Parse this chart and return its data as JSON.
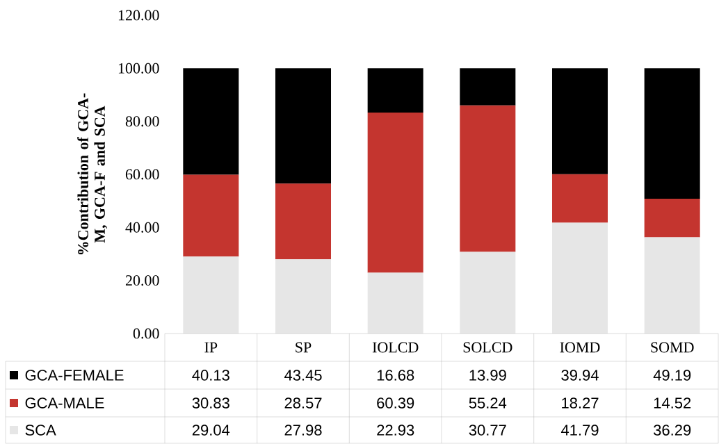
{
  "chart_data": {
    "type": "bar",
    "stacked": true,
    "ylabel": "%Contribution of GCA-M, GCA-F and SCA",
    "categories": [
      "IP",
      "SP",
      "IOLCD",
      "SOLCD",
      "IOMD",
      "SOMD"
    ],
    "series": [
      {
        "name": "SCA",
        "color": "#e6e6e6",
        "values": [
          29.04,
          27.98,
          22.93,
          30.77,
          41.79,
          36.29
        ]
      },
      {
        "name": "GCA-MALE",
        "color": "#c4352f",
        "values": [
          30.83,
          28.57,
          60.39,
          55.24,
          18.27,
          14.52
        ]
      },
      {
        "name": "GCA-FEMALE",
        "color": "#000000",
        "values": [
          40.13,
          43.45,
          16.68,
          13.99,
          39.94,
          49.19
        ]
      }
    ],
    "ylim": [
      0,
      120
    ],
    "yticks": [
      {
        "value": 0,
        "label": "0.00"
      },
      {
        "value": 20,
        "label": "20.00"
      },
      {
        "value": 40,
        "label": "40.00"
      },
      {
        "value": 60,
        "label": "60.00"
      },
      {
        "value": 80,
        "label": "80.00"
      },
      {
        "value": 100,
        "label": "100.00"
      },
      {
        "value": 120,
        "label": "120.00"
      }
    ],
    "data_labels": true,
    "legend": "bottom"
  }
}
